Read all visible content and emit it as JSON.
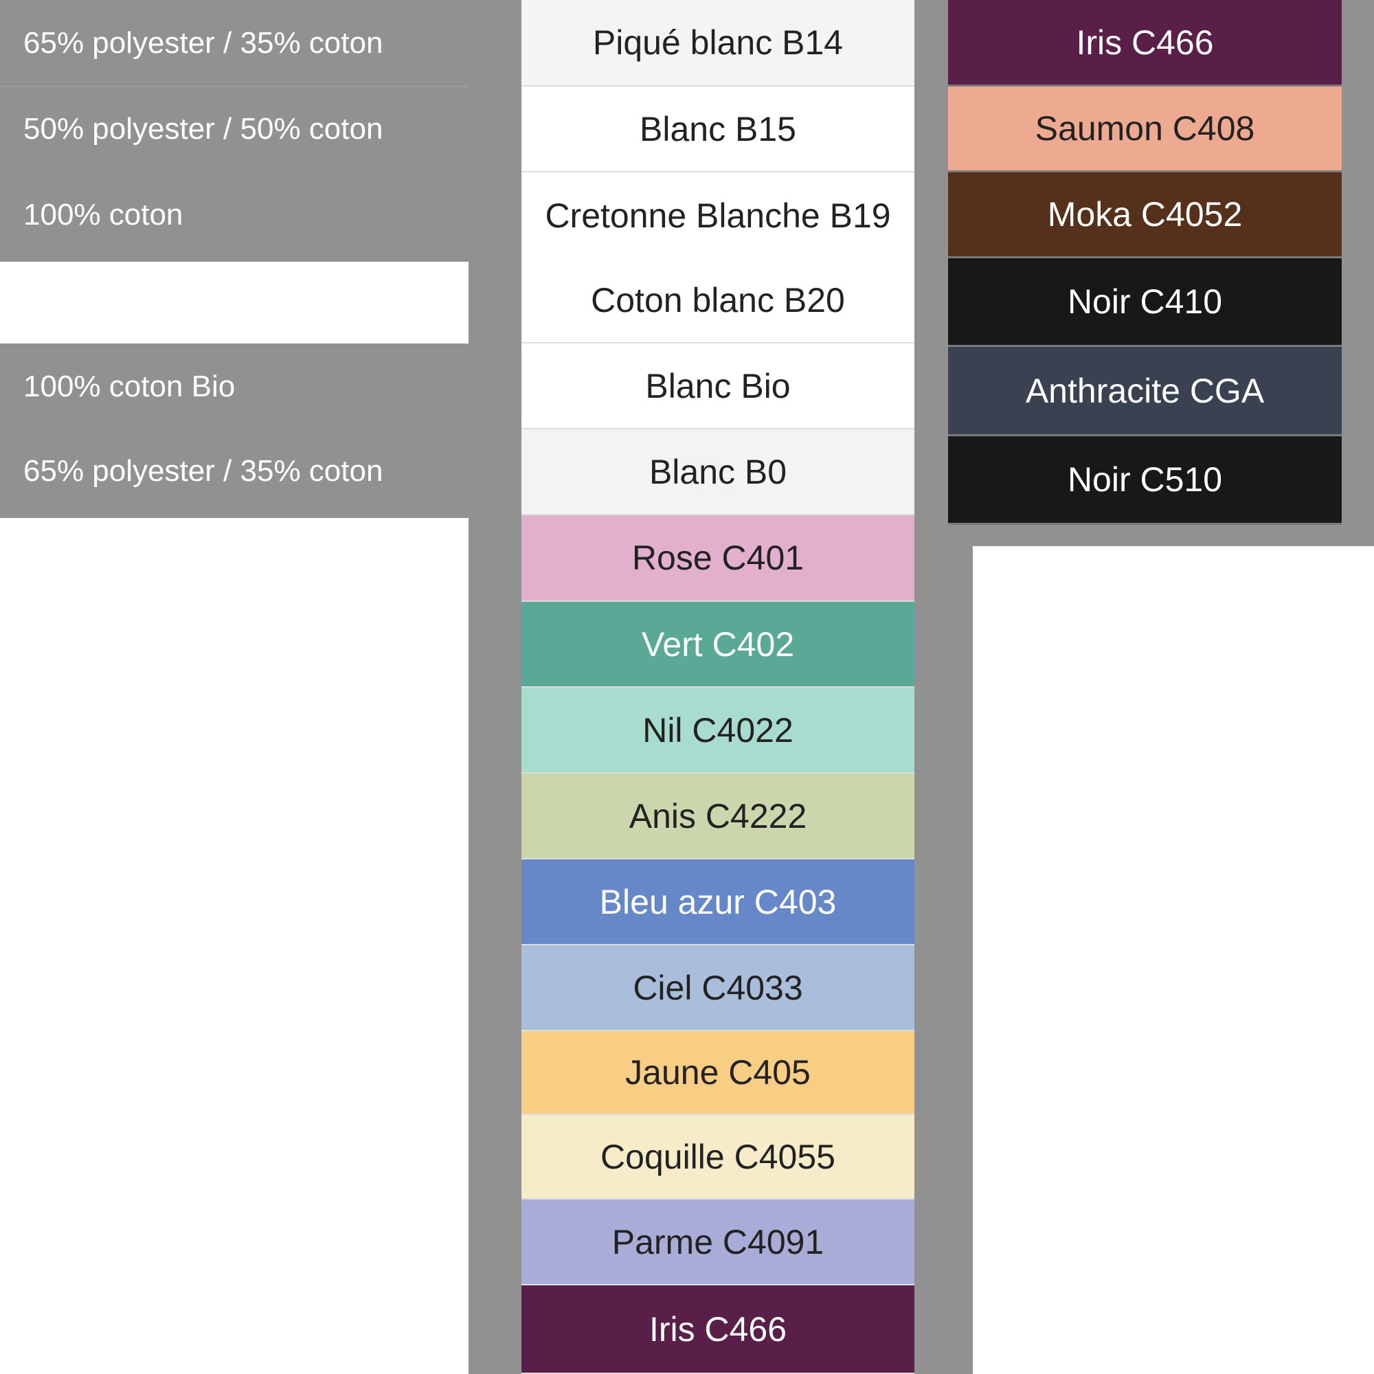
{
  "fabrics": [
    "65% polyester / 35% coton",
    "50% polyester / 50% coton",
    "100% coton",
    "100% coton Bio",
    "65% polyester / 35% coton"
  ],
  "middle_swatches": [
    {
      "label": "Piqué blanc B14",
      "color": "#f4f4f4",
      "text": "#222"
    },
    {
      "label": "Blanc B15",
      "color": "#ffffff",
      "text": "#222"
    },
    {
      "label": "Cretonne Blanche B19",
      "color": "#ffffff",
      "text": "#222"
    },
    {
      "label": "Coton blanc B20",
      "color": "#ffffff",
      "text": "#222"
    },
    {
      "label": "Blanc Bio",
      "color": "#ffffff",
      "text": "#222"
    },
    {
      "label": "Blanc B0",
      "color": "#f2f3f3",
      "text": "#222"
    },
    {
      "label": "Rose C401",
      "color": "#e2b0cc",
      "text": "#222"
    },
    {
      "label": "Vert C402",
      "color": "#5aa896",
      "text": "#fff"
    },
    {
      "label": "Nil C4022",
      "color": "#a8dccf",
      "text": "#222"
    },
    {
      "label": "Anis C4222",
      "color": "#cbd6ac",
      "text": "#222"
    },
    {
      "label": "Bleu azur C403",
      "color": "#6688c8",
      "text": "#fff"
    },
    {
      "label": "Ciel C4033",
      "color": "#a8bedb",
      "text": "#222"
    },
    {
      "label": "Jaune C405",
      "color": "#f8cd84",
      "text": "#222"
    },
    {
      "label": "Coquille C4055",
      "color": "#f6ecca",
      "text": "#222"
    },
    {
      "label": "Parme C4091",
      "color": "#aaacd8",
      "text": "#222"
    },
    {
      "label": "Iris C466",
      "color": "#5a1f48",
      "text": "#fff"
    }
  ],
  "right_swatches": [
    {
      "label": "Iris C466",
      "color": "#5a1f48",
      "text": "#fff"
    },
    {
      "label": "Saumon C408",
      "color": "#eeaa90",
      "text": "#222"
    },
    {
      "label": "Moka C4052",
      "color": "#55301a",
      "text": "#fff"
    },
    {
      "label": "Noir C410",
      "color": "#18181a",
      "text": "#fff"
    },
    {
      "label": "Anthracite CGA",
      "color": "#3a4252",
      "text": "#fff"
    },
    {
      "label": "Noir C510",
      "color": "#18181a",
      "text": "#fff"
    }
  ]
}
